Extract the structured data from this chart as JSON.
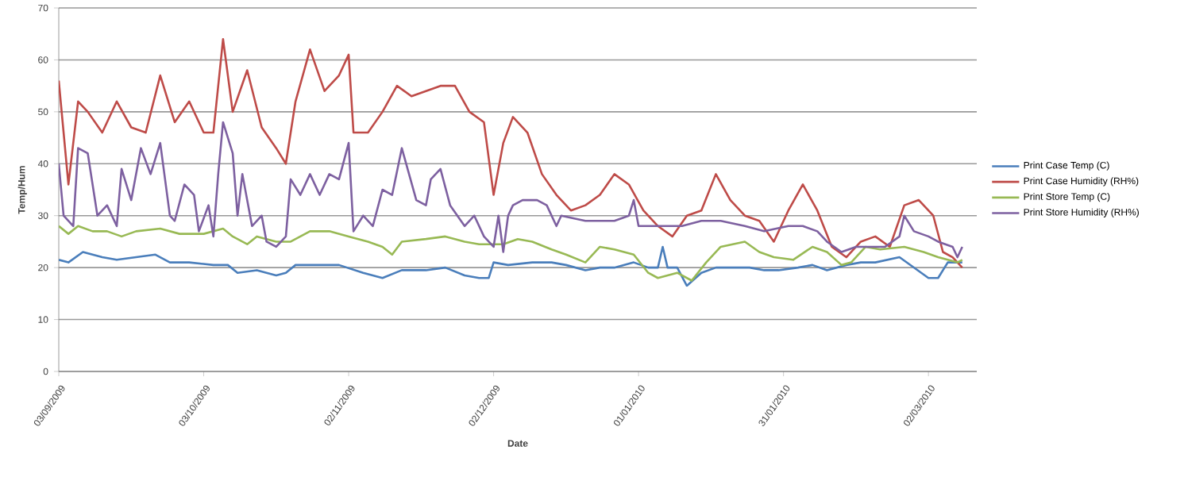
{
  "chart_data": {
    "type": "line",
    "xlabel": "Date",
    "ylabel": "Temp/Hum",
    "xlim": [
      "2009-09-03",
      "2010-03-12"
    ],
    "ylim": [
      0,
      70
    ],
    "yticks": [
      0,
      10,
      20,
      30,
      40,
      50,
      60,
      70
    ],
    "xticks": [
      {
        "value": "2009-09-03",
        "label": "03/09/2009"
      },
      {
        "value": "2009-10-03",
        "label": "03/10/2009"
      },
      {
        "value": "2009-11-02",
        "label": "02/11/2009"
      },
      {
        "value": "2009-12-02",
        "label": "02/12/2009"
      },
      {
        "value": "2010-01-01",
        "label": "01/01/2010"
      },
      {
        "value": "2010-01-31",
        "label": "31/01/2010"
      },
      {
        "value": "2010-03-02",
        "label": "02/03/2010"
      }
    ],
    "grid": "y",
    "legend": "right",
    "marker": "none",
    "line_style": "solid",
    "series": [
      {
        "name": "Print Case Temp (C)",
        "color": "#4a7ebb",
        "x": [
          "2009-09-03",
          "2009-09-05",
          "2009-09-08",
          "2009-09-12",
          "2009-09-15",
          "2009-09-19",
          "2009-09-23",
          "2009-09-26",
          "2009-09-30",
          "2009-10-05",
          "2009-10-08",
          "2009-10-10",
          "2009-10-14",
          "2009-10-18",
          "2009-10-20",
          "2009-10-22",
          "2009-10-27",
          "2009-10-31",
          "2009-11-05",
          "2009-11-09",
          "2009-11-13",
          "2009-11-18",
          "2009-11-22",
          "2009-11-26",
          "2009-11-29",
          "2009-12-01",
          "2009-12-02",
          "2009-12-05",
          "2009-12-10",
          "2009-12-14",
          "2009-12-17",
          "2009-12-21",
          "2009-12-24",
          "2009-12-27",
          "2009-12-31",
          "2010-01-03",
          "2010-01-05",
          "2010-01-06",
          "2010-01-07",
          "2010-01-09",
          "2010-01-11",
          "2010-01-14",
          "2010-01-17",
          "2010-01-21",
          "2010-01-24",
          "2010-01-27",
          "2010-01-30",
          "2010-02-03",
          "2010-02-06",
          "2010-02-09",
          "2010-02-13",
          "2010-02-16",
          "2010-02-19",
          "2010-02-24",
          "2010-02-27",
          "2010-03-02",
          "2010-03-04",
          "2010-03-06",
          "2010-03-09"
        ],
        "values": [
          21.5,
          21,
          23,
          22,
          21.5,
          22,
          22.5,
          21,
          21,
          20.5,
          20.5,
          19,
          19.5,
          18.5,
          19,
          20.5,
          20.5,
          20.5,
          19,
          18,
          19.5,
          19.5,
          20,
          18.5,
          18,
          18,
          21,
          20.5,
          21,
          21,
          20.5,
          19.5,
          20,
          20,
          21,
          20,
          20,
          24,
          20,
          20,
          16.5,
          19,
          20,
          20,
          20,
          19.5,
          19.5,
          20,
          20.5,
          19.5,
          20.5,
          21,
          21,
          22,
          20,
          18,
          18,
          21,
          21
        ]
      },
      {
        "name": "Print Case Humidity  (RH%)",
        "color": "#be4b48",
        "x": [
          "2009-09-03",
          "2009-09-05",
          "2009-09-07",
          "2009-09-09",
          "2009-09-12",
          "2009-09-15",
          "2009-09-18",
          "2009-09-21",
          "2009-09-24",
          "2009-09-27",
          "2009-09-30",
          "2009-10-03",
          "2009-10-05",
          "2009-10-07",
          "2009-10-09",
          "2009-10-12",
          "2009-10-15",
          "2009-10-18",
          "2009-10-20",
          "2009-10-22",
          "2009-10-25",
          "2009-10-28",
          "2009-10-31",
          "2009-11-02",
          "2009-11-03",
          "2009-11-06",
          "2009-11-09",
          "2009-11-12",
          "2009-11-15",
          "2009-11-18",
          "2009-11-21",
          "2009-11-24",
          "2009-11-27",
          "2009-11-30",
          "2009-12-02",
          "2009-12-04",
          "2009-12-06",
          "2009-12-09",
          "2009-12-12",
          "2009-12-15",
          "2009-12-18",
          "2009-12-21",
          "2009-12-24",
          "2009-12-27",
          "2009-12-30",
          "2010-01-02",
          "2010-01-05",
          "2010-01-08",
          "2010-01-11",
          "2010-01-14",
          "2010-01-17",
          "2010-01-20",
          "2010-01-23",
          "2010-01-26",
          "2010-01-29",
          "2010-02-01",
          "2010-02-04",
          "2010-02-07",
          "2010-02-10",
          "2010-02-13",
          "2010-02-16",
          "2010-02-19",
          "2010-02-22",
          "2010-02-25",
          "2010-02-28",
          "2010-03-03",
          "2010-03-05",
          "2010-03-07",
          "2010-03-09"
        ],
        "values": [
          56,
          36,
          52,
          50,
          46,
          52,
          47,
          46,
          57,
          48,
          52,
          46,
          46,
          64,
          50,
          58,
          47,
          43,
          40,
          52,
          62,
          54,
          57,
          61,
          46,
          46,
          50,
          55,
          53,
          54,
          55,
          55,
          50,
          48,
          34,
          44,
          49,
          46,
          38,
          34,
          31,
          32,
          34,
          38,
          36,
          31,
          28,
          26,
          30,
          31,
          38,
          33,
          30,
          29,
          25,
          31,
          36,
          31,
          24,
          22,
          25,
          26,
          24,
          32,
          33,
          30,
          23,
          22,
          20
        ]
      },
      {
        "name": "Print Store Temp (C)",
        "color": "#98b954",
        "x": [
          "2009-09-03",
          "2009-09-05",
          "2009-09-07",
          "2009-09-10",
          "2009-09-13",
          "2009-09-16",
          "2009-09-19",
          "2009-09-24",
          "2009-09-28",
          "2009-10-03",
          "2009-10-07",
          "2009-10-09",
          "2009-10-12",
          "2009-10-14",
          "2009-10-18",
          "2009-10-21",
          "2009-10-25",
          "2009-10-29",
          "2009-11-02",
          "2009-11-06",
          "2009-11-09",
          "2009-11-11",
          "2009-11-13",
          "2009-11-18",
          "2009-11-22",
          "2009-11-26",
          "2009-11-29",
          "2009-12-04",
          "2009-12-07",
          "2009-12-10",
          "2009-12-14",
          "2009-12-17",
          "2009-12-21",
          "2009-12-24",
          "2009-12-27",
          "2009-12-31",
          "2010-01-03",
          "2010-01-05",
          "2010-01-09",
          "2010-01-12",
          "2010-01-15",
          "2010-01-18",
          "2010-01-23",
          "2010-01-26",
          "2010-01-29",
          "2010-02-02",
          "2010-02-06",
          "2010-02-09",
          "2010-02-12",
          "2010-02-14",
          "2010-02-17",
          "2010-02-20",
          "2010-02-25",
          "2010-03-01",
          "2010-03-04",
          "2010-03-08",
          "2010-03-09"
        ],
        "values": [
          28,
          26.5,
          28,
          27,
          27,
          26,
          27,
          27.5,
          26.5,
          26.5,
          27.5,
          26,
          24.5,
          26,
          25,
          25,
          27,
          27,
          26,
          25,
          24,
          22.5,
          25,
          25.5,
          26,
          25,
          24.5,
          24.5,
          25.5,
          25,
          23.5,
          22.5,
          21,
          24,
          23.5,
          22.5,
          19,
          18,
          19,
          17.5,
          21,
          24,
          25,
          23,
          22,
          21.5,
          24,
          23,
          20.5,
          21,
          24,
          23.5,
          24,
          23,
          22,
          21,
          21.5
        ]
      },
      {
        "name": "Print Store Humidity  (RH%)",
        "color": "#7d60a0",
        "x": [
          "2009-09-03",
          "2009-09-04",
          "2009-09-06",
          "2009-09-07",
          "2009-09-09",
          "2009-09-11",
          "2009-09-13",
          "2009-09-15",
          "2009-09-16",
          "2009-09-18",
          "2009-09-20",
          "2009-09-22",
          "2009-09-24",
          "2009-09-26",
          "2009-09-27",
          "2009-09-29",
          "2009-10-01",
          "2009-10-02",
          "2009-10-04",
          "2009-10-05",
          "2009-10-06",
          "2009-10-07",
          "2009-10-09",
          "2009-10-10",
          "2009-10-11",
          "2009-10-13",
          "2009-10-15",
          "2009-10-16",
          "2009-10-18",
          "2009-10-20",
          "2009-10-21",
          "2009-10-23",
          "2009-10-25",
          "2009-10-27",
          "2009-10-29",
          "2009-10-31",
          "2009-11-02",
          "2009-11-03",
          "2009-11-05",
          "2009-11-07",
          "2009-11-09",
          "2009-11-11",
          "2009-11-13",
          "2009-11-16",
          "2009-11-18",
          "2009-11-19",
          "2009-11-21",
          "2009-11-23",
          "2009-11-26",
          "2009-11-28",
          "2009-11-30",
          "2009-12-02",
          "2009-12-03",
          "2009-12-04",
          "2009-12-05",
          "2009-12-06",
          "2009-12-08",
          "2009-12-11",
          "2009-12-13",
          "2009-12-15",
          "2009-12-16",
          "2009-12-21",
          "2009-12-27",
          "2009-12-30",
          "2009-12-31",
          "2010-01-01",
          "2010-01-05",
          "2010-01-10",
          "2010-01-14",
          "2010-01-18",
          "2010-01-23",
          "2010-01-27",
          "2010-02-01",
          "2010-02-04",
          "2010-02-07",
          "2010-02-09",
          "2010-02-12",
          "2010-02-15",
          "2010-02-18",
          "2010-02-21",
          "2010-02-24",
          "2010-02-25",
          "2010-02-27",
          "2010-03-02",
          "2010-03-04",
          "2010-03-07",
          "2010-03-08",
          "2010-03-09"
        ],
        "values": [
          40,
          30,
          28,
          43,
          42,
          30,
          32,
          28,
          39,
          33,
          43,
          38,
          44,
          30,
          29,
          36,
          34,
          27,
          32,
          26,
          38,
          48,
          42,
          30,
          38,
          28,
          30,
          25,
          24,
          26,
          37,
          34,
          38,
          34,
          38,
          37,
          44,
          27,
          30,
          28,
          35,
          34,
          43,
          33,
          32,
          37,
          39,
          32,
          28,
          30,
          26,
          24,
          30,
          23,
          30,
          32,
          33,
          33,
          32,
          28,
          30,
          29,
          29,
          30,
          33,
          28,
          28,
          28,
          29,
          29,
          28,
          27,
          28,
          28,
          27,
          25,
          23,
          24,
          24,
          24,
          26,
          30,
          27,
          26,
          25,
          24,
          22,
          24
        ]
      }
    ]
  }
}
